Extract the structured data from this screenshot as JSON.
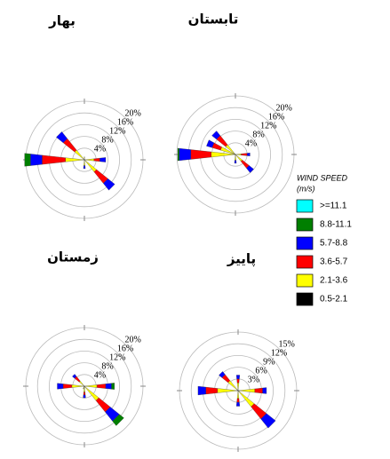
{
  "chart_data": [
    {
      "type": "windrose",
      "title": "بهار",
      "rlim": [
        0,
        20
      ],
      "rticks": [
        {
          "value": 4,
          "label": "4%"
        },
        {
          "value": 8,
          "label": "8%"
        },
        {
          "value": 12,
          "label": "12%"
        },
        {
          "value": 16,
          "label": "16%"
        },
        {
          "value": 20,
          "label": "20%"
        }
      ],
      "categories": [
        null,
        null,
        null,
        null,
        null,
        null,
        null,
        null,
        null,
        null,
        null,
        null,
        null,
        null,
        null,
        null
      ],
      "series": [
        {
          "values": [
            0,
            0,
            0,
            0,
            0,
            0,
            0,
            0,
            0,
            0,
            0,
            0,
            0,
            0,
            0,
            0
          ]
        },
        {
          "values": [
            0,
            0,
            0,
            0,
            0,
            0,
            0,
            0,
            0,
            0,
            0,
            0,
            2,
            0,
            0,
            0
          ]
        },
        {
          "values": [
            0,
            0,
            0,
            0,
            2,
            0,
            3,
            0,
            1,
            0,
            0,
            0,
            4,
            0,
            3,
            0
          ]
        },
        {
          "values": [
            0,
            0,
            0,
            0,
            2,
            0,
            5,
            0,
            0,
            0,
            0,
            0,
            8,
            0,
            5,
            0
          ]
        },
        {
          "values": [
            1,
            0,
            0,
            0,
            3,
            0,
            5,
            0,
            2,
            0,
            0,
            0,
            6,
            0,
            4,
            0
          ]
        },
        {
          "values": [
            0,
            0,
            0,
            0,
            0.3,
            0,
            0.3,
            0,
            0,
            0,
            0,
            0,
            0.5,
            0,
            0.3,
            0
          ]
        }
      ]
    },
    {
      "type": "windrose",
      "title": "تابستان",
      "rlim": [
        0,
        20
      ],
      "rticks": [
        {
          "value": 4,
          "label": "4%"
        },
        {
          "value": 8,
          "label": "8%"
        },
        {
          "value": 12,
          "label": "12%"
        },
        {
          "value": 16,
          "label": "16%"
        },
        {
          "value": 20,
          "label": "20%"
        }
      ],
      "categories": [
        null,
        null,
        null,
        null,
        null,
        null,
        null,
        null,
        null,
        null,
        null,
        null,
        null,
        null,
        null,
        null
      ],
      "series": [
        {
          "values": [
            0,
            0,
            0,
            0,
            0,
            0,
            0,
            0,
            0,
            0,
            0,
            0,
            0,
            0,
            0,
            0
          ]
        },
        {
          "values": [
            0,
            0,
            0,
            0,
            0,
            0,
            0,
            0,
            0,
            0,
            0,
            0,
            0.5,
            0,
            0,
            0
          ]
        },
        {
          "values": [
            0,
            0,
            0,
            0,
            1,
            0,
            2,
            0,
            1,
            0,
            0,
            0,
            4,
            2,
            2,
            0
          ]
        },
        {
          "values": [
            0,
            0,
            0,
            0,
            2,
            0,
            3,
            0,
            0,
            0,
            0,
            0,
            7,
            3,
            4,
            0
          ]
        },
        {
          "values": [
            0,
            0,
            0,
            0,
            2,
            0,
            3,
            0,
            2,
            0,
            0,
            0,
            8,
            5,
            4,
            0
          ]
        },
        {
          "values": [
            0,
            0,
            0,
            0,
            0,
            0,
            0,
            0,
            0,
            0,
            0,
            0,
            0.3,
            0.3,
            0.3,
            0
          ]
        }
      ]
    },
    {
      "type": "windrose",
      "title": "زمستان",
      "rlim": [
        0,
        20
      ],
      "rticks": [
        {
          "value": 4,
          "label": "4%"
        },
        {
          "value": 8,
          "label": "8%"
        },
        {
          "value": 12,
          "label": "12%"
        },
        {
          "value": 16,
          "label": "16%"
        },
        {
          "value": 20,
          "label": "20%"
        }
      ],
      "categories": [
        null,
        null,
        null,
        null,
        null,
        null,
        null,
        null,
        null,
        null,
        null,
        null,
        null,
        null,
        null,
        null
      ],
      "series": [
        {
          "values": [
            0,
            0,
            0,
            0,
            0,
            0,
            0,
            0,
            0,
            0,
            0,
            0,
            0,
            0,
            0,
            0
          ]
        },
        {
          "values": [
            0,
            0,
            0,
            0,
            1,
            0,
            2,
            0,
            0,
            0,
            0,
            0,
            0,
            0,
            0,
            0
          ]
        },
        {
          "values": [
            0,
            0,
            0,
            0,
            2,
            0,
            4,
            0,
            1,
            0,
            0,
            0,
            2,
            0,
            1,
            0
          ]
        },
        {
          "values": [
            0,
            0,
            0,
            0,
            3,
            0,
            5,
            0,
            1,
            0,
            0,
            0,
            3,
            0,
            2,
            0
          ]
        },
        {
          "values": [
            0,
            0,
            0,
            0,
            4,
            0,
            6,
            0,
            2,
            1,
            0,
            0,
            4,
            0,
            2,
            0
          ]
        },
        {
          "values": [
            0,
            0,
            0,
            0,
            0.3,
            0,
            0.3,
            0,
            0,
            0,
            0,
            0,
            0.3,
            0,
            0.3,
            0
          ]
        }
      ]
    },
    {
      "type": "windrose",
      "title": "پاییز",
      "rlim": [
        0,
        15
      ],
      "rticks": [
        {
          "value": 3,
          "label": "3%"
        },
        {
          "value": 6,
          "label": "6%"
        },
        {
          "value": 9,
          "label": "9%"
        },
        {
          "value": 12,
          "label": "12%"
        },
        {
          "value": 15,
          "label": "15%"
        }
      ],
      "categories": [
        null,
        null,
        null,
        null,
        null,
        null,
        null,
        null,
        null,
        null,
        null,
        null,
        null,
        null,
        null,
        null
      ],
      "series": [
        {
          "values": [
            0,
            0,
            0,
            0,
            0,
            0,
            0,
            0,
            0,
            0,
            0,
            0,
            0,
            0,
            0,
            0
          ]
        },
        {
          "values": [
            0,
            0,
            0,
            0,
            0,
            0,
            0,
            0,
            0,
            0,
            0,
            0,
            0,
            0,
            0,
            0
          ]
        },
        {
          "values": [
            1,
            0,
            0,
            0,
            1,
            0,
            3,
            0,
            1,
            0,
            0,
            0,
            2,
            0,
            1,
            0
          ]
        },
        {
          "values": [
            1,
            0,
            0,
            0,
            2,
            0,
            4,
            0,
            1,
            0,
            0,
            0,
            3,
            0,
            2,
            0
          ]
        },
        {
          "values": [
            2,
            0,
            0,
            0,
            4,
            0,
            5,
            0,
            2,
            0,
            0,
            0,
            5,
            0,
            3,
            0
          ]
        },
        {
          "values": [
            0,
            0,
            0,
            0,
            0.3,
            0,
            0.3,
            0,
            0,
            0,
            0,
            0,
            0.3,
            0,
            0.3,
            0
          ]
        }
      ]
    }
  ],
  "legend": {
    "title": "WIND SPEED",
    "unit": "(m/s)",
    "items": [
      {
        "name": ">=11.1",
        "color": "#00ffff"
      },
      {
        "name": "8.8-11.1",
        "color": "#007f00"
      },
      {
        "name": "5.7-8.8",
        "color": "#0000ff"
      },
      {
        "name": "3.6-5.7",
        "color": "#ff0000"
      },
      {
        "name": "2.1-3.6",
        "color": "#ffff00"
      },
      {
        "name": "0.5-2.1",
        "color": "#000000"
      }
    ]
  }
}
